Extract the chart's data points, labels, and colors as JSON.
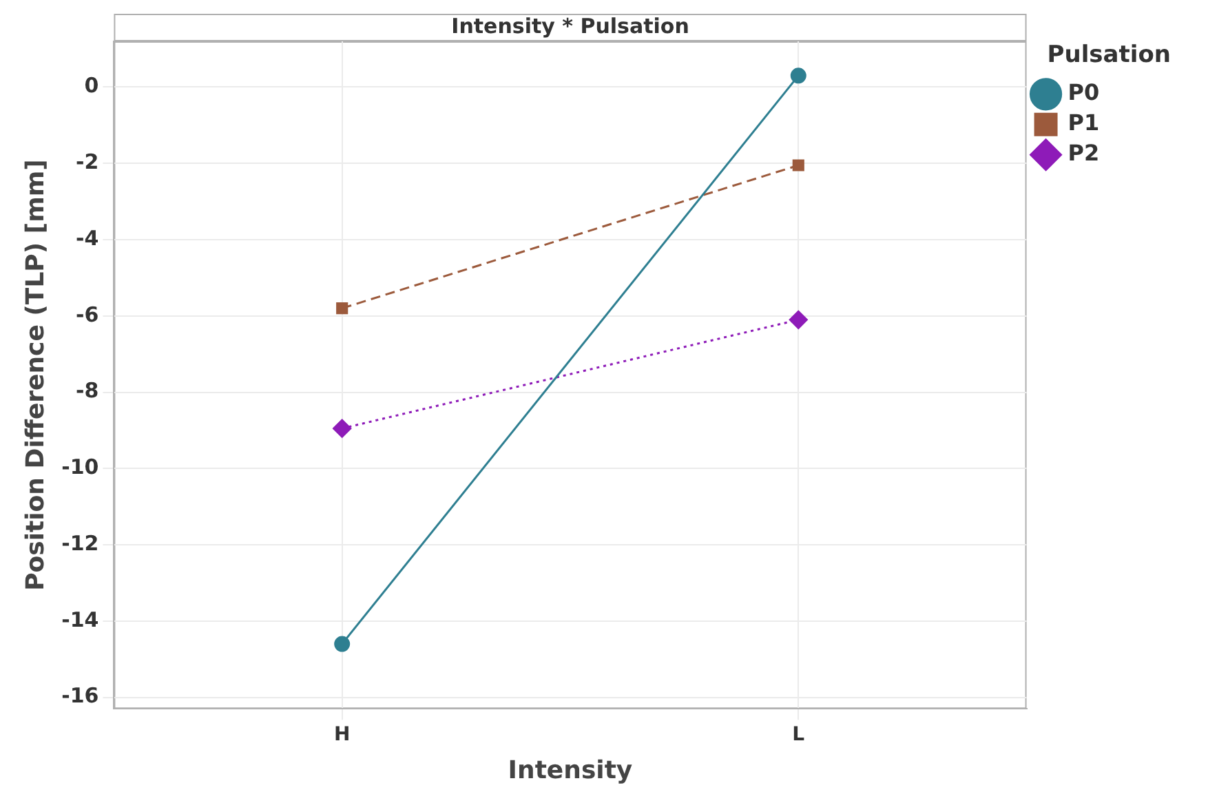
{
  "chart_data": {
    "type": "line",
    "title": "Intensity * Pulsation",
    "xlabel": "Intensity",
    "ylabel": "Position Difference (TLP) [mm]",
    "legend_title": "Pulsation",
    "categories": [
      "H",
      "L"
    ],
    "series": [
      {
        "name": "P0",
        "color": "#2e7f91",
        "values": [
          -14.6,
          0.3
        ],
        "marker": "circle",
        "line_style": "solid"
      },
      {
        "name": "P1",
        "color": "#9c5a3c",
        "values": [
          -5.8,
          -2.05
        ],
        "marker": "square",
        "line_style": "dashed"
      },
      {
        "name": "P2",
        "color": "#8e1bb8",
        "values": [
          -8.95,
          -6.1
        ],
        "marker": "diamond",
        "line_style": "dotted"
      }
    ],
    "ylim": [
      -16.3,
      1.2
    ],
    "yticks": [
      -16,
      -14,
      -12,
      -10,
      -8,
      -6,
      -4,
      -2,
      0
    ],
    "grid": true,
    "legend": "top right"
  }
}
